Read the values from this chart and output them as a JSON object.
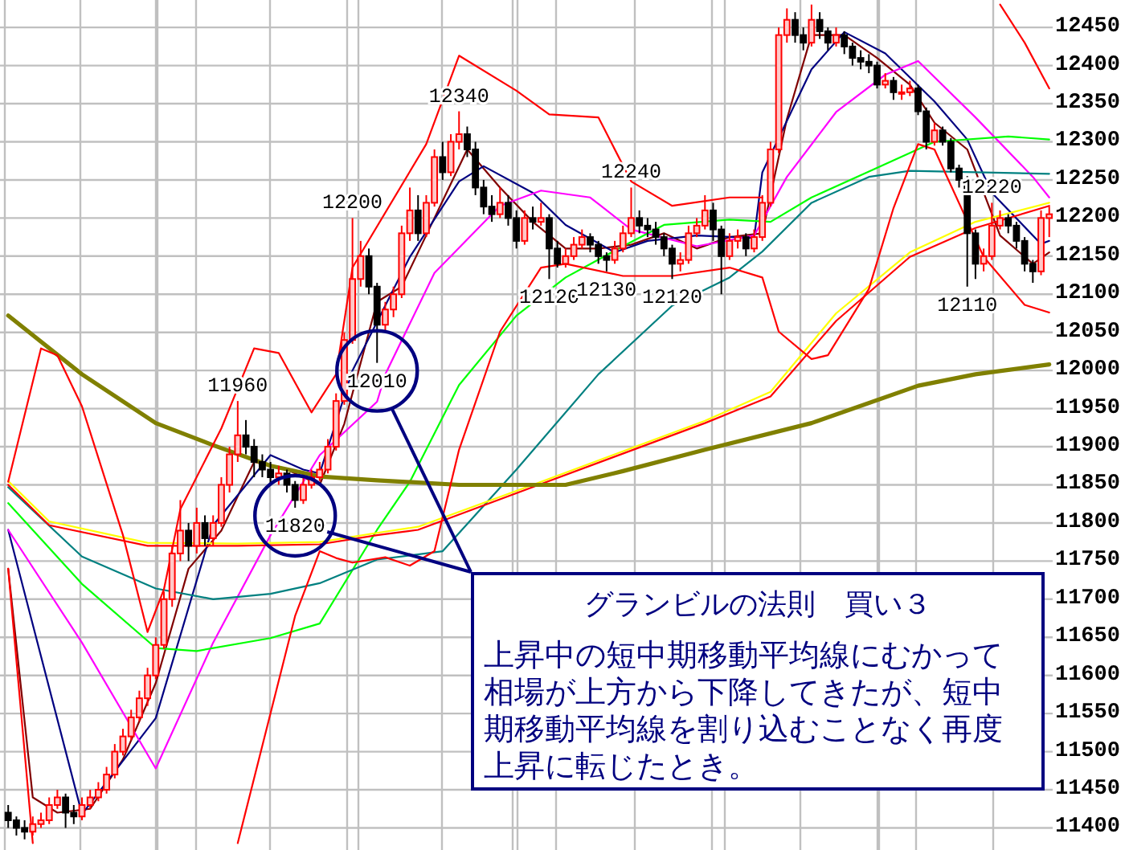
{
  "chart_data": {
    "type": "candlestick",
    "categories": [
      null,
      null,
      null,
      null,
      null,
      null,
      null,
      null,
      null,
      null,
      null,
      null,
      null,
      null,
      null,
      null,
      null,
      null,
      null,
      null,
      null,
      null,
      null,
      null,
      null,
      null,
      null,
      null,
      null,
      null,
      null,
      null,
      null,
      null,
      null,
      null,
      null,
      null,
      null,
      null,
      null,
      null,
      null,
      null,
      null,
      null,
      null,
      null,
      null,
      null,
      null,
      null,
      null,
      null,
      null,
      null,
      null,
      null,
      null,
      null,
      null,
      null,
      null,
      null,
      null,
      null,
      null,
      null,
      null,
      null,
      null,
      null,
      null,
      null,
      null,
      null,
      null,
      null,
      null,
      null,
      null,
      null,
      null,
      null,
      null,
      null,
      null,
      null,
      null,
      null,
      null,
      null,
      null,
      null,
      null,
      null,
      null,
      null,
      null,
      null,
      null,
      null,
      null,
      null,
      null,
      null,
      null,
      null,
      null,
      null,
      null,
      null,
      null,
      null,
      null,
      null,
      null,
      null,
      null,
      null,
      null,
      null,
      null,
      null,
      null,
      null,
      null,
      null
    ],
    "ohlc": [
      [
        11420,
        11430,
        11400,
        11410
      ],
      [
        11410,
        11415,
        11390,
        11400
      ],
      [
        11400,
        11410,
        11385,
        11395
      ],
      [
        11395,
        11415,
        11390,
        11405
      ],
      [
        11405,
        11420,
        11400,
        11410
      ],
      [
        11410,
        11440,
        11405,
        11430
      ],
      [
        11430,
        11450,
        11425,
        11440
      ],
      [
        11440,
        11445,
        11400,
        11420
      ],
      [
        11420,
        11430,
        11405,
        11415
      ],
      [
        11415,
        11440,
        11410,
        11430
      ],
      [
        11430,
        11450,
        11425,
        11440
      ],
      [
        11440,
        11460,
        11435,
        11450
      ],
      [
        11450,
        11480,
        11445,
        11470
      ],
      [
        11470,
        11510,
        11465,
        11500
      ],
      [
        11500,
        11530,
        11495,
        11520
      ],
      [
        11520,
        11555,
        11515,
        11545
      ],
      [
        11545,
        11580,
        11540,
        11570
      ],
      [
        11570,
        11610,
        11560,
        11600
      ],
      [
        11600,
        11650,
        11595,
        11640
      ],
      [
        11640,
        11710,
        11635,
        11700
      ],
      [
        11700,
        11770,
        11690,
        11760
      ],
      [
        11760,
        11830,
        11750,
        11790
      ],
      [
        11790,
        11800,
        11750,
        11770
      ],
      [
        11770,
        11820,
        11760,
        11800
      ],
      [
        11800,
        11810,
        11770,
        11780
      ],
      [
        11780,
        11810,
        11770,
        11800
      ],
      [
        11800,
        11860,
        11795,
        11850
      ],
      [
        11850,
        11900,
        11840,
        11890
      ],
      [
        11890,
        11960,
        11880,
        11915
      ],
      [
        11915,
        11935,
        11890,
        11900
      ],
      [
        11900,
        11910,
        11860,
        11880
      ],
      [
        11880,
        11890,
        11860,
        11870
      ],
      [
        11870,
        11880,
        11850,
        11860
      ],
      [
        11860,
        11875,
        11850,
        11865
      ],
      [
        11865,
        11870,
        11840,
        11850
      ],
      [
        11850,
        11855,
        11820,
        11830
      ],
      [
        11830,
        11860,
        11825,
        11850
      ],
      [
        11850,
        11870,
        11845,
        11860
      ],
      [
        11860,
        11880,
        11855,
        11870
      ],
      [
        11870,
        11910,
        11865,
        11900
      ],
      [
        11900,
        11970,
        11895,
        11960
      ],
      [
        11960,
        12050,
        11955,
        12040
      ],
      [
        12040,
        12200,
        12035,
        12120
      ],
      [
        12120,
        12170,
        12110,
        12150
      ],
      [
        12150,
        12160,
        12100,
        12110
      ],
      [
        12110,
        12115,
        12010,
        12060
      ],
      [
        12060,
        12090,
        12050,
        12080
      ],
      [
        12080,
        12110,
        12070,
        12100
      ],
      [
        12100,
        12190,
        12095,
        12180
      ],
      [
        12180,
        12240,
        12170,
        12210
      ],
      [
        12210,
        12230,
        12170,
        12180
      ],
      [
        12180,
        12230,
        12175,
        12220
      ],
      [
        12220,
        12290,
        12215,
        12280
      ],
      [
        12280,
        12300,
        12250,
        12260
      ],
      [
        12260,
        12310,
        12255,
        12300
      ],
      [
        12300,
        12340,
        12290,
        12310
      ],
      [
        12310,
        12320,
        12280,
        12290
      ],
      [
        12290,
        12300,
        12230,
        12240
      ],
      [
        12240,
        12250,
        12205,
        12215
      ],
      [
        12215,
        12230,
        12195,
        12205
      ],
      [
        12205,
        12240,
        12200,
        12220
      ],
      [
        12220,
        12230,
        12190,
        12200
      ],
      [
        12200,
        12210,
        12160,
        12170
      ],
      [
        12170,
        12210,
        12165,
        12200
      ],
      [
        12200,
        12215,
        12185,
        12195
      ],
      [
        12195,
        12220,
        12190,
        12200
      ],
      [
        12200,
        12205,
        12120,
        12160
      ],
      [
        12160,
        12170,
        12135,
        12140
      ],
      [
        12140,
        12160,
        12135,
        12150
      ],
      [
        12150,
        12175,
        12145,
        12165
      ],
      [
        12165,
        12185,
        12160,
        12175
      ],
      [
        12175,
        12180,
        12155,
        12165
      ],
      [
        12165,
        12170,
        12140,
        12150
      ],
      [
        12150,
        12155,
        12130,
        12145
      ],
      [
        12145,
        12170,
        12140,
        12160
      ],
      [
        12160,
        12190,
        12155,
        12180
      ],
      [
        12180,
        12240,
        12175,
        12200
      ],
      [
        12200,
        12210,
        12180,
        12190
      ],
      [
        12190,
        12200,
        12175,
        12185
      ],
      [
        12185,
        12195,
        12165,
        12175
      ],
      [
        12175,
        12180,
        12150,
        12160
      ],
      [
        12160,
        12165,
        12120,
        12140
      ],
      [
        12140,
        12155,
        12130,
        12145
      ],
      [
        12145,
        12190,
        12140,
        12180
      ],
      [
        12180,
        12200,
        12175,
        12190
      ],
      [
        12190,
        12230,
        12185,
        12210
      ],
      [
        12210,
        12220,
        12170,
        12185
      ],
      [
        12185,
        12190,
        12100,
        12150
      ],
      [
        12150,
        12180,
        12145,
        12170
      ],
      [
        12170,
        12185,
        12160,
        12175
      ],
      [
        12175,
        12180,
        12150,
        12160
      ],
      [
        12160,
        12185,
        12155,
        12175
      ],
      [
        12175,
        12230,
        12170,
        12220
      ],
      [
        12220,
        12300,
        12215,
        12290
      ],
      [
        12290,
        12450,
        12285,
        12440
      ],
      [
        12440,
        12475,
        12430,
        12460
      ],
      [
        12460,
        12470,
        12430,
        12440
      ],
      [
        12440,
        12450,
        12420,
        12430
      ],
      [
        12430,
        12480,
        12425,
        12460
      ],
      [
        12460,
        12470,
        12435,
        12445
      ],
      [
        12445,
        12450,
        12420,
        12430
      ],
      [
        12430,
        12450,
        12425,
        12440
      ],
      [
        12440,
        12445,
        12415,
        12425
      ],
      [
        12425,
        12430,
        12400,
        12410
      ],
      [
        12410,
        12420,
        12395,
        12405
      ],
      [
        12405,
        12415,
        12390,
        12400
      ],
      [
        12400,
        12405,
        12370,
        12375
      ],
      [
        12375,
        12390,
        12370,
        12380
      ],
      [
        12380,
        12385,
        12355,
        12365
      ],
      [
        12365,
        12375,
        12355,
        12365
      ],
      [
        12365,
        12380,
        12360,
        12370
      ],
      [
        12370,
        12375,
        12335,
        12340
      ],
      [
        12340,
        12345,
        12290,
        12300
      ],
      [
        12300,
        12325,
        12295,
        12315
      ],
      [
        12315,
        12320,
        12295,
        12300
      ],
      [
        12300,
        12305,
        12260,
        12265
      ],
      [
        12265,
        12270,
        12240,
        12250
      ],
      [
        12250,
        12255,
        12110,
        12180
      ],
      [
        12180,
        12185,
        12120,
        12140
      ],
      [
        12140,
        12160,
        12130,
        12150
      ],
      [
        12150,
        12220,
        12145,
        12190
      ],
      [
        12190,
        12210,
        12185,
        12200
      ],
      [
        12200,
        12205,
        12180,
        12190
      ],
      [
        12190,
        12195,
        12160,
        12170
      ],
      [
        12170,
        12175,
        12130,
        12140
      ],
      [
        12140,
        12145,
        12115,
        12130
      ],
      [
        12130,
        12210,
        12125,
        12200
      ],
      [
        12200,
        12215,
        12175,
        12205
      ]
    ],
    "series": [
      {
        "type": "line",
        "color": "#800000",
        "values": [
          11740,
          null,
          null,
          11440,
          null,
          null,
          11420,
          null,
          null,
          null,
          11425,
          null,
          null,
          null,
          11490,
          null,
          null,
          null,
          11590,
          null,
          null,
          null,
          11740,
          null,
          null,
          null,
          11790,
          null,
          null,
          null,
          11880,
          null,
          null,
          null,
          11870,
          null,
          null,
          null,
          11850,
          null,
          null,
          11930,
          null,
          null,
          null,
          12090,
          null,
          null,
          12110,
          null,
          null,
          null,
          12200,
          null,
          null,
          null,
          12290,
          null,
          null,
          null,
          12240,
          null,
          null,
          null,
          12195,
          null,
          null,
          null,
          12160,
          null,
          null,
          null,
          12160,
          null,
          null,
          null,
          12165,
          null,
          null,
          null,
          12180,
          null,
          null,
          null,
          12160,
          null,
          null,
          null,
          12175,
          null,
          null,
          null,
          12180,
          null,
          null,
          12330,
          null,
          null,
          12440,
          null,
          null,
          null,
          12440,
          null,
          null,
          null,
          12410,
          null,
          null,
          null,
          12375,
          null,
          null,
          12325,
          null,
          null,
          null,
          12290,
          null,
          null,
          null,
          12177,
          null,
          null,
          null,
          12140,
          null,
          12155
        ]
      },
      {
        "type": "line",
        "color": "#000080",
        "values": [
          11791,
          null,
          null,
          null,
          null,
          null,
          null,
          null,
          null,
          11418,
          null,
          null,
          null,
          null,
          null,
          null,
          null,
          null,
          11544,
          null,
          null,
          null,
          null,
          null,
          null,
          11797,
          null,
          null,
          null,
          null,
          null,
          null,
          11889,
          null,
          null,
          null,
          11870,
          null,
          11865,
          null,
          null,
          null,
          12000,
          null,
          null,
          null,
          null,
          null,
          null,
          12149,
          null,
          null,
          null,
          null,
          null,
          12248,
          null,
          null,
          12268,
          null,
          null,
          null,
          null,
          null,
          12233,
          null,
          null,
          null,
          12191,
          null,
          null,
          null,
          null,
          null,
          12155,
          null,
          null,
          null,
          12170,
          null,
          null,
          null,
          null,
          null,
          12177,
          null,
          null,
          null,
          null,
          null,
          null,
          12174,
          12260,
          null,
          null,
          null,
          null,
          null,
          12395,
          null,
          null,
          null,
          12444,
          null,
          null,
          null,
          null,
          12416,
          null,
          null,
          null,
          null,
          null,
          12353,
          null,
          null,
          null,
          12303,
          null,
          null,
          12233,
          null,
          null,
          null,
          null,
          null,
          12166,
          12170
        ]
      },
      {
        "type": "line",
        "color": "#ff00ff",
        "values": [
          11791,
          null,
          null,
          null,
          null,
          null,
          null,
          null,
          null,
          11643,
          null,
          null,
          null,
          null,
          null,
          null,
          null,
          null,
          11478,
          null,
          null,
          null,
          null,
          null,
          null,
          11643,
          null,
          null,
          null,
          null,
          null,
          null,
          11784,
          null,
          null,
          null,
          null,
          null,
          11889,
          null,
          null,
          null,
          null,
          null,
          null,
          11959,
          11995,
          null,
          null,
          null,
          null,
          null,
          12128,
          null,
          null,
          null,
          null,
          null,
          null,
          null,
          12216,
          null,
          null,
          null,
          null,
          12236,
          null,
          null,
          null,
          null,
          null,
          12227,
          null,
          null,
          null,
          null,
          12185,
          null,
          null,
          null,
          null,
          null,
          null,
          null,
          12163,
          null,
          null,
          null,
          null,
          null,
          null,
          12177,
          null,
          null,
          null,
          12254,
          null,
          null,
          null,
          null,
          null,
          12339,
          null,
          null,
          null,
          null,
          null,
          12388,
          null,
          null,
          null,
          12406,
          null,
          null,
          null,
          null,
          null,
          null,
          12332,
          null,
          null,
          null,
          null,
          null,
          null,
          12254,
          null,
          12227
        ]
      },
      {
        "type": "line",
        "color": "#00ff00",
        "values": [
          11826,
          null,
          null,
          null,
          null,
          null,
          null,
          null,
          null,
          11720,
          null,
          null,
          null,
          null,
          null,
          null,
          null,
          null,
          11636,
          null,
          null,
          null,
          null,
          11632,
          null,
          null,
          null,
          null,
          null,
          null,
          null,
          null,
          11649,
          null,
          null,
          null,
          null,
          null,
          11668,
          null,
          null,
          null,
          null,
          null,
          null,
          11791,
          null,
          null,
          null,
          11854,
          null,
          null,
          null,
          null,
          null,
          11981,
          null,
          null,
          null,
          null,
          null,
          null,
          12072,
          null,
          null,
          null,
          null,
          null,
          12122,
          null,
          null,
          null,
          null,
          null,
          null,
          12163,
          null,
          null,
          null,
          null,
          12191,
          null,
          null,
          null,
          null,
          null,
          null,
          null,
          12198,
          null,
          null,
          null,
          null,
          12195,
          null,
          null,
          null,
          null,
          12227,
          null,
          null,
          null,
          null,
          null,
          null,
          12261,
          null,
          null,
          null,
          null,
          null,
          null,
          null,
          12300,
          null,
          null,
          null,
          null,
          null,
          null,
          null,
          null,
          12307,
          null,
          null,
          null,
          null,
          12303
        ]
      },
      {
        "type": "line",
        "color": "#008080",
        "values": [
          11847,
          null,
          null,
          null,
          null,
          null,
          null,
          null,
          null,
          11756,
          null,
          null,
          null,
          null,
          null,
          null,
          null,
          null,
          11714,
          null,
          null,
          null,
          null,
          null,
          null,
          11700,
          null,
          null,
          null,
          null,
          null,
          null,
          11707,
          null,
          null,
          null,
          null,
          null,
          11721,
          null,
          null,
          null,
          null,
          null,
          null,
          11752,
          null,
          null,
          null,
          null,
          null,
          null,
          null,
          11763,
          null,
          null,
          null,
          null,
          null,
          null,
          null,
          null,
          11870,
          null,
          null,
          null,
          null,
          null,
          null,
          null,
          null,
          null,
          11995,
          null,
          null,
          null,
          null,
          null,
          null,
          null,
          null,
          12085,
          null,
          null,
          null,
          null,
          null,
          null,
          12122,
          null,
          null,
          null,
          12156,
          null,
          null,
          null,
          null,
          null,
          12220,
          null,
          null,
          null,
          null,
          null,
          null,
          12254,
          null,
          null,
          null,
          null,
          12262,
          null,
          null,
          null,
          null,
          null,
          null,
          null,
          12260,
          null,
          null,
          null,
          null,
          null,
          null,
          null,
          null,
          12258
        ]
      },
      {
        "type": "line",
        "color": "#ffff00",
        "values": [
          11855,
          null,
          null,
          null,
          null,
          11802,
          null,
          null,
          null,
          null,
          null,
          null,
          null,
          null,
          null,
          null,
          null,
          11774,
          null,
          null,
          null,
          null,
          null,
          null,
          null,
          null,
          null,
          null,
          11773,
          null,
          null,
          null,
          null,
          null,
          null,
          null,
          null,
          null,
          11775,
          null,
          null,
          null,
          null,
          null,
          null,
          11787,
          null,
          null,
          null,
          null,
          11795,
          null,
          null,
          null,
          null,
          null,
          null,
          null,
          null,
          null,
          null,
          null,
          null,
          null,
          11850,
          null,
          null,
          null,
          null,
          null,
          null,
          null,
          null,
          null,
          null,
          null,
          null,
          null,
          null,
          null,
          null,
          null,
          null,
          null,
          null,
          11934,
          null,
          null,
          null,
          null,
          null,
          null,
          null,
          11972,
          null,
          null,
          null,
          null,
          null,
          null,
          null,
          12075,
          null,
          null,
          null,
          null,
          null,
          null,
          null,
          null,
          12155,
          null,
          null,
          null,
          null,
          null,
          null,
          null,
          12195,
          null,
          null,
          null,
          null,
          null,
          null,
          null,
          null,
          12220
        ]
      },
      {
        "type": "line",
        "color": "#ff0000",
        "values": [
          11850,
          null,
          null,
          null,
          null,
          11797,
          null,
          null,
          null,
          null,
          null,
          null,
          null,
          null,
          null,
          null,
          null,
          11770,
          null,
          null,
          null,
          null,
          null,
          null,
          null,
          null,
          null,
          null,
          11770,
          null,
          null,
          null,
          null,
          null,
          null,
          null,
          null,
          null,
          11772,
          null,
          null,
          null,
          null,
          null,
          null,
          11784,
          null,
          null,
          null,
          null,
          11791,
          null,
          null,
          null,
          null,
          null,
          null,
          null,
          null,
          null,
          null,
          null,
          null,
          null,
          11847,
          null,
          null,
          null,
          null,
          null,
          null,
          null,
          null,
          null,
          null,
          null,
          null,
          null,
          null,
          null,
          null,
          null,
          null,
          null,
          null,
          11931,
          null,
          null,
          null,
          null,
          null,
          null,
          null,
          11966,
          null,
          null,
          null,
          null,
          null,
          null,
          null,
          12065,
          null,
          null,
          null,
          null,
          null,
          null,
          null,
          null,
          12149,
          null,
          null,
          null,
          null,
          null,
          null,
          null,
          12187,
          null,
          null,
          null,
          null,
          null,
          null,
          null,
          null,
          12216
        ]
      },
      {
        "type": "line",
        "color": "#808000",
        "values": [
          12072,
          null,
          null,
          null,
          null,
          null,
          null,
          null,
          null,
          11995,
          null,
          null,
          null,
          null,
          null,
          null,
          null,
          null,
          11931,
          null,
          null,
          null,
          null,
          null,
          null,
          11902,
          null,
          null,
          null,
          null,
          null,
          null,
          11875,
          null,
          null,
          null,
          null,
          null,
          11861,
          null,
          null,
          null,
          null,
          null,
          null,
          11856,
          null,
          null,
          null,
          null,
          null,
          null,
          null,
          null,
          null,
          11850,
          null,
          null,
          null,
          null,
          null,
          null,
          null,
          null,
          null,
          null,
          null,
          null,
          11850,
          null,
          null,
          null,
          null,
          null,
          null,
          11868,
          null,
          null,
          null,
          null,
          null,
          null,
          null,
          null,
          null,
          11896,
          null,
          null,
          null,
          null,
          null,
          null,
          null,
          null,
          null,
          null,
          null,
          null,
          11931,
          null,
          null,
          null,
          null,
          null,
          null,
          null,
          null,
          null,
          null,
          null,
          null,
          11980,
          null,
          null,
          null,
          null,
          null,
          null,
          11995,
          null,
          null,
          null,
          null,
          null,
          null,
          null,
          null,
          12008
        ]
      },
      {
        "type": "line",
        "color": "#ff0000",
        "values": [
          11854,
          null,
          null,
          null,
          12029,
          null,
          12020,
          null,
          null,
          11953,
          null,
          null,
          null,
          null,
          11784,
          null,
          null,
          11657,
          null,
          11713,
          null,
          11818,
          null,
          null,
          null,
          null,
          11924,
          null,
          null,
          null,
          12029,
          null,
          null,
          12023,
          null,
          null,
          null,
          11945,
          null,
          null,
          11995,
          null,
          12135,
          null,
          null,
          null,
          null,
          null,
          null,
          null,
          null,
          12297,
          null,
          null,
          null,
          12413,
          null,
          null,
          null,
          null,
          null,
          null,
          12367,
          null,
          null,
          null,
          12336,
          null,
          null,
          null,
          null,
          null,
          12332,
          null,
          null,
          null,
          12248,
          null,
          null,
          null,
          null,
          12216,
          null,
          null,
          null,
          null,
          null,
          null,
          12227,
          null,
          null,
          null,
          12227,
          null,
          null,
          null,
          null,
          null,
          null,
          null,
          null,
          null,
          null,
          null,
          null,
          null,
          null,
          null,
          null,
          null,
          null,
          null,
          null,
          null,
          null,
          null,
          null,
          null,
          null,
          null,
          null,
          null,
          null,
          null,
          null,
          null,
          null,
          null
        ]
      },
      {
        "type": "line",
        "color": "#ff0000",
        "values": [
          null,
          null,
          null,
          null,
          null,
          null,
          null,
          null,
          null,
          null,
          null,
          null,
          null,
          null,
          null,
          null,
          null,
          null,
          null,
          null,
          null,
          null,
          null,
          null,
          null,
          null,
          null,
          null,
          null,
          null,
          null,
          null,
          null,
          null,
          null,
          null,
          null,
          null,
          null,
          null,
          null,
          null,
          null,
          null,
          null,
          null,
          null,
          null,
          null,
          null,
          null,
          null,
          null,
          null,
          null,
          null,
          null,
          null,
          null,
          null,
          null,
          null,
          null,
          null,
          null,
          null,
          null,
          null,
          null,
          null,
          null,
          null,
          null,
          null,
          null,
          null,
          null,
          null,
          null,
          null,
          null,
          null,
          null,
          null,
          null,
          null,
          null,
          null,
          null,
          null,
          null,
          null,
          null,
          null,
          null,
          null,
          null,
          null,
          null,
          null,
          null,
          null,
          null,
          null,
          null,
          null,
          null,
          null,
          null,
          null,
          null,
          null,
          null,
          null,
          null,
          null,
          null,
          null,
          null,
          null,
          null,
          12480,
          null,
          null,
          12430,
          null,
          null,
          12370
        ]
      },
      {
        "type": "line",
        "color": "#ff0000",
        "values": [
          11740,
          null,
          null,
          11380,
          null,
          null,
          null,
          null,
          null,
          null,
          null,
          null,
          null,
          null,
          null,
          null,
          null,
          null,
          null,
          null,
          null,
          null,
          null,
          null,
          null,
          null,
          null,
          null,
          null,
          null,
          null,
          null,
          null,
          null,
          null,
          null,
          null,
          null,
          null,
          null,
          null,
          null,
          null,
          null,
          null,
          null,
          null,
          null,
          null,
          null,
          null,
          null,
          null,
          null,
          null,
          null,
          null,
          null,
          null,
          null,
          null,
          null,
          null,
          null,
          null,
          null,
          null,
          null,
          null,
          null,
          null,
          null,
          null,
          null,
          null,
          null,
          null,
          null,
          null,
          null,
          null,
          null,
          null,
          null,
          null,
          null,
          null,
          null,
          null,
          null,
          null,
          null,
          null,
          null,
          null,
          null,
          null,
          null,
          null,
          null,
          null,
          null,
          null,
          null,
          null,
          null,
          null,
          null,
          null,
          null,
          null,
          null,
          null,
          null,
          null,
          null,
          null,
          null,
          null,
          null,
          null,
          null,
          null,
          null,
          null,
          null,
          null,
          null
        ]
      },
      {
        "type": "line",
        "color": "#ff0000",
        "values": [
          null,
          null,
          null,
          null,
          null,
          null,
          null,
          null,
          null,
          null,
          null,
          null,
          null,
          null,
          null,
          null,
          null,
          null,
          null,
          null,
          null,
          null,
          null,
          null,
          null,
          null,
          null,
          null,
          11380,
          null,
          null,
          null,
          null,
          null,
          null,
          11678,
          null,
          null,
          11763,
          null,
          11754,
          null,
          11748,
          null,
          null,
          null,
          11755,
          null,
          null,
          11744,
          null,
          null,
          11763,
          null,
          null,
          11896,
          null,
          null,
          null,
          null,
          12051,
          null,
          null,
          null,
          null,
          12135,
          null,
          null,
          12140,
          null,
          null,
          null,
          null,
          null,
          null,
          12124,
          null,
          null,
          null,
          null,
          null,
          12124,
          null,
          null,
          null,
          null,
          null,
          null,
          12135,
          null,
          null,
          null,
          12122,
          null,
          12051,
          null,
          null,
          null,
          12015,
          null,
          12020,
          null,
          null,
          null,
          null,
          12107,
          null,
          null,
          12213,
          null,
          null,
          12297,
          null,
          12290,
          null,
          null,
          null,
          null,
          null,
          12149,
          null,
          null,
          null,
          null,
          12086,
          null,
          null,
          12076
        ]
      }
    ],
    "ylim": [
      11371,
      12486
    ],
    "yticks": [
      11400,
      11450,
      11500,
      11550,
      11600,
      11650,
      11700,
      11750,
      11800,
      11850,
      11900,
      11950,
      12000,
      12050,
      12100,
      12150,
      12200,
      12250,
      12300,
      12350,
      12400,
      12450
    ],
    "grid": true,
    "tick_labels": "y",
    "annotations": [
      {
        "text": "11960",
        "y": 11960
      },
      {
        "text": "11820",
        "y": 11820
      },
      {
        "text": "12200",
        "y": 12200
      },
      {
        "text": "12010",
        "y": 12010
      },
      {
        "text": "12340",
        "y": 12340
      },
      {
        "text": "12120",
        "y": 12120
      },
      {
        "text": "12130",
        "y": 12130
      },
      {
        "text": "12240",
        "y": 12240
      },
      {
        "text": "12120",
        "y": 12120
      },
      {
        "text": "12110",
        "y": 12110
      },
      {
        "text": "12220",
        "y": 12220
      },
      "グランビルの法則　買い３",
      "上昇中の短中期移動平均線にむかって相場が上方から下降してきたが、短中期移動平均線を割り込むことなく再度上昇に転じたとき。"
    ]
  }
}
